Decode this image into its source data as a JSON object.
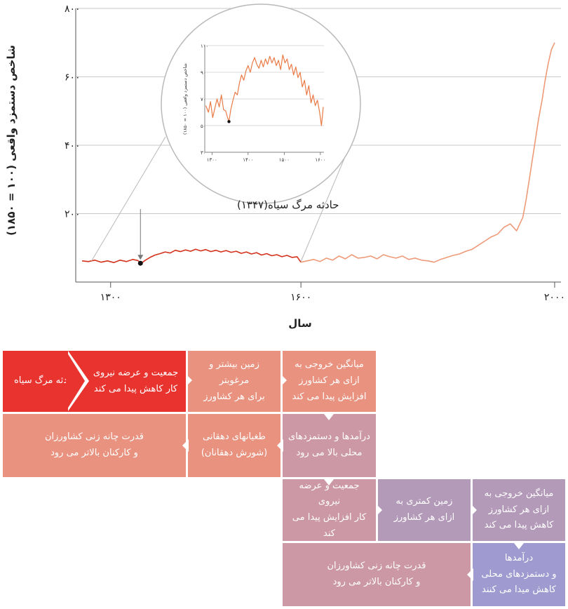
{
  "chart_data": {
    "type": "line",
    "ylabel": "شاخص دستمزد واقعی (۱۰۰ = ۱۸۵۰)",
    "xlabel": "سال",
    "xlim": [
      1245,
      2010
    ],
    "ylim": [
      0,
      800
    ],
    "x_ticks": [
      {
        "value": 1300,
        "label": "۱۳۰۰"
      },
      {
        "value": 1600,
        "label": "۱۶۰۰"
      },
      {
        "value": 2000,
        "label": "۲۰۰۰"
      }
    ],
    "y_ticks": [
      {
        "value": 200,
        "label": "۲۰۰"
      },
      {
        "value": 400,
        "label": "۴۰۰"
      },
      {
        "value": 600,
        "label": "۶۰۰"
      },
      {
        "value": 800,
        "label": "۸۰۰"
      }
    ],
    "series": [
      {
        "color": "#d4321c",
        "x": [
          1255,
          1265,
          1275,
          1285,
          1295,
          1305,
          1315,
          1325,
          1335,
          1343,
          1348,
          1355,
          1362,
          1370,
          1378,
          1386,
          1394,
          1402,
          1410,
          1418,
          1426,
          1434,
          1442,
          1450,
          1458,
          1466,
          1474,
          1482,
          1490,
          1498,
          1506,
          1514,
          1522,
          1530,
          1538,
          1546,
          1554,
          1562,
          1570,
          1578,
          1586,
          1594,
          1600
        ],
        "y": [
          62,
          60,
          64,
          58,
          62,
          57,
          64,
          60,
          66,
          63,
          55,
          64,
          72,
          79,
          83,
          88,
          85,
          93,
          89,
          94,
          90,
          96,
          91,
          95,
          89,
          93,
          88,
          92,
          87,
          90,
          84,
          88,
          82,
          86,
          79,
          83,
          77,
          80,
          74,
          78,
          72,
          74,
          58
        ]
      },
      {
        "color": "#ee9a78",
        "x": [
          1600,
          1610,
          1620,
          1630,
          1640,
          1650,
          1660,
          1670,
          1680,
          1690,
          1700,
          1710,
          1720,
          1730,
          1740,
          1750,
          1760,
          1770,
          1780,
          1790,
          1800,
          1810,
          1820,
          1830,
          1840,
          1850,
          1860,
          1870,
          1880,
          1890,
          1900,
          1910,
          1920,
          1930,
          1940,
          1950,
          1955,
          1960,
          1965,
          1970,
          1975,
          1980,
          1985,
          1990,
          1995,
          2000
        ],
        "y": [
          58,
          62,
          66,
          60,
          70,
          64,
          76,
          68,
          80,
          70,
          72,
          76,
          68,
          80,
          74,
          70,
          76,
          66,
          70,
          64,
          62,
          58,
          66,
          72,
          78,
          82,
          90,
          96,
          108,
          120,
          132,
          140,
          160,
          170,
          150,
          190,
          240,
          300,
          360,
          420,
          480,
          530,
          590,
          640,
          680,
          700
        ]
      }
    ],
    "annotations": [
      {
        "text": "حادثه مرگ سیاه(۱۳۴۷)",
        "x": 1347,
        "y": 55
      }
    ],
    "inset": {
      "ylabel": "شاخص دستمزد واقعی (۱۰۰ = ۱۸۵۰)",
      "xlim": [
        1280,
        1610
      ],
      "ylim": [
        30,
        110
      ],
      "x_ticks": [
        {
          "value": 1300,
          "label": "۱۳۰۰"
        },
        {
          "value": 1400,
          "label": "۱۴۰۰"
        },
        {
          "value": 1500,
          "label": "۱۵۰۰"
        },
        {
          "value": 1600,
          "label": "۱۶۰۰"
        }
      ],
      "y_ticks": [
        {
          "value": 30,
          "label": "۳۰"
        },
        {
          "value": 50,
          "label": "۵۰"
        },
        {
          "value": 70,
          "label": "۷۰"
        },
        {
          "value": 90,
          "label": "۹۰"
        },
        {
          "value": 110,
          "label": "۱۱۰"
        }
      ],
      "x": [
        1283,
        1290,
        1296,
        1302,
        1308,
        1314,
        1320,
        1326,
        1332,
        1338,
        1343,
        1347,
        1352,
        1358,
        1364,
        1370,
        1376,
        1382,
        1388,
        1394,
        1400,
        1406,
        1412,
        1418,
        1424,
        1430,
        1436,
        1442,
        1448,
        1454,
        1460,
        1466,
        1472,
        1478,
        1484,
        1490,
        1496,
        1502,
        1508,
        1514,
        1520,
        1526,
        1532,
        1538,
        1544,
        1550,
        1556,
        1562,
        1568,
        1574,
        1580,
        1586,
        1592,
        1598,
        1603,
        1608
      ],
      "y": [
        65,
        60,
        68,
        56,
        63,
        70,
        64,
        73,
        62,
        61,
        56,
        53,
        62,
        69,
        75,
        73,
        82,
        88,
        84,
        91,
        95,
        90,
        97,
        101,
        96,
        93,
        99,
        94,
        100,
        96,
        102,
        97,
        101,
        95,
        99,
        92,
        103,
        97,
        100,
        92,
        96,
        88,
        94,
        86,
        90,
        79,
        84,
        73,
        80,
        67,
        73,
        65,
        69,
        60,
        50,
        64
      ]
    }
  },
  "flow": {
    "row1": {
      "black_death": "حادثه مرگ سیاه",
      "population_down": [
        "جمعیت و عرضه نیروی",
        "کار کاهش پیدا می کند"
      ],
      "more_land": [
        "زمین بیشتر و مرغوبتر",
        "برای هر کشاورز"
      ],
      "output_up": [
        "میانگین خروجی به",
        "ازای هر کشاورز",
        "افزایش پیدا می کند"
      ]
    },
    "row2": {
      "bargaining_up": [
        "قدرت چانه زنی کشاورزان",
        "و کارکنان بالاتر می رود"
      ],
      "revolts": [
        "طغیانهای دهقانی",
        "(شورش دهقانان)"
      ],
      "wages_up": [
        "درآمدها و دستمزدهای",
        "محلی بالا می رود"
      ]
    },
    "row3": {
      "population_up": [
        "جمعیت و عرضه نیروی",
        "کار افزایش پیدا می کند"
      ],
      "less_land": [
        "زمین کمتری به",
        "ازای هر کشاورز"
      ],
      "output_down": [
        "میانگین خروجی به",
        "ازای هر کشاورز",
        "کاهش پیدا می کند"
      ]
    },
    "row4": {
      "bargaining_up": [
        "قدرت چانه زنی کشاورزان",
        "و کارکنان بالاتر می رود"
      ],
      "wages_down": [
        "درآمدها",
        "و دستمزدهای محلی",
        "کاهش میدا می کنند"
      ]
    }
  }
}
